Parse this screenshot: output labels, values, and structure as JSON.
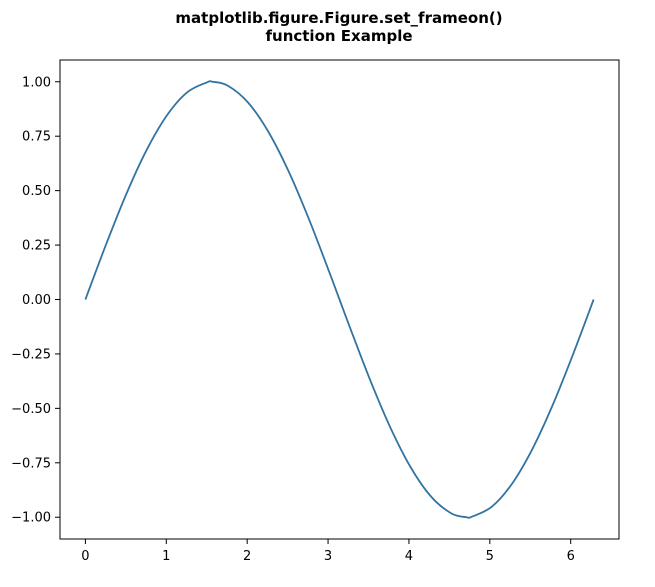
{
  "chart_data": {
    "type": "line",
    "title_lines": [
      "matplotlib.figure.Figure.set_frameon()",
      "function Example"
    ],
    "xlabel": "",
    "ylabel": "",
    "xlim": [
      -0.314,
      6.597
    ],
    "ylim": [
      -1.1,
      1.1
    ],
    "xticks": [
      0,
      1,
      2,
      3,
      4,
      5,
      6
    ],
    "xtick_labels": [
      "0",
      "1",
      "2",
      "3",
      "4",
      "5",
      "6"
    ],
    "yticks": [
      1.0,
      0.75,
      0.5,
      0.25,
      0.0,
      -0.25,
      -0.5,
      -0.75,
      -1.0
    ],
    "ytick_labels": [
      "1.00",
      "0.75",
      "0.50",
      "0.25",
      "0.00",
      "−0.25",
      "−0.50",
      "−0.75",
      "−1.00"
    ],
    "grid": false,
    "legend": "none",
    "series": [
      {
        "color": "#3274a1",
        "x": [
          0,
          0.2513,
          0.5027,
          0.754,
          1.0053,
          1.2566,
          1.508,
          1.5708,
          1.7593,
          2.0106,
          2.2619,
          2.5133,
          2.7646,
          3.0159,
          3.1416,
          3.2673,
          3.5186,
          3.7699,
          4.0212,
          4.2726,
          4.5239,
          4.7124,
          4.7752,
          5.0265,
          5.2779,
          5.5292,
          5.7805,
          6.0319,
          6.2832
        ],
        "y": [
          0,
          0.2487,
          0.4818,
          0.6845,
          0.8443,
          0.9511,
          0.998,
          1.0,
          0.9823,
          0.9048,
          0.7705,
          0.5878,
          0.3681,
          0.1253,
          0,
          -0.1253,
          -0.3681,
          -0.5878,
          -0.7705,
          -0.9048,
          -0.9823,
          -1.0,
          -0.998,
          -0.9511,
          -0.8443,
          -0.6845,
          -0.4818,
          -0.2487,
          0
        ]
      }
    ]
  }
}
